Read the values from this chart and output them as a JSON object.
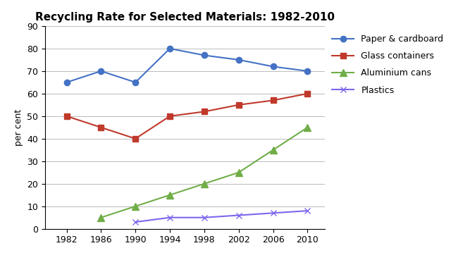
{
  "title": "Recycling Rate for Selected Materials: 1982-2010",
  "ylabel": "per cent",
  "years": [
    1982,
    1986,
    1990,
    1994,
    1998,
    2002,
    2006,
    2010
  ],
  "series": [
    {
      "label": "Paper & cardboard",
      "values": [
        65,
        70,
        65,
        80,
        77,
        75,
        72,
        70
      ],
      "color": "#4472C4",
      "marker": "o",
      "markersize": 6,
      "marker_facecolor": "#4472C4",
      "marker_edgecolor": "#4472C4"
    },
    {
      "label": "Glass containers",
      "values": [
        50,
        45,
        40,
        50,
        52,
        55,
        57,
        60
      ],
      "color": "#C0392B",
      "marker": "s",
      "markersize": 6,
      "marker_facecolor": "#C0392B",
      "marker_edgecolor": "#C0392B"
    },
    {
      "label": "Aluminium cans",
      "values": [
        null,
        5,
        10,
        15,
        20,
        25,
        35,
        45
      ],
      "color": "#70AD47",
      "marker": "^",
      "markersize": 7,
      "marker_facecolor": "#70AD47",
      "marker_edgecolor": "#70AD47"
    },
    {
      "label": "Plastics",
      "values": [
        null,
        null,
        3,
        5,
        5,
        6,
        7,
        8
      ],
      "color": "#7B68EE",
      "marker": "x",
      "markersize": 6,
      "marker_facecolor": "#7B68EE",
      "marker_edgecolor": "#7B68EE"
    }
  ],
  "ylim": [
    0,
    90
  ],
  "yticks": [
    0,
    10,
    20,
    30,
    40,
    50,
    60,
    70,
    80,
    90
  ],
  "grid_color": "#BBBBBB",
  "bg_color": "#FFFFFF",
  "title_fontsize": 11,
  "axis_label_fontsize": 9,
  "tick_fontsize": 9,
  "legend_fontsize": 9
}
